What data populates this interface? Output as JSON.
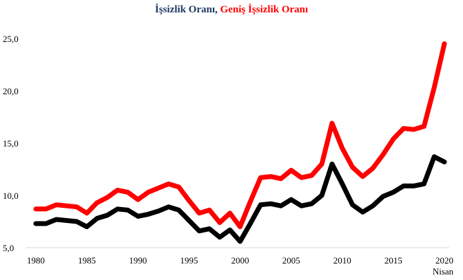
{
  "chart_data": {
    "type": "line",
    "title_parts": [
      {
        "text": "İşsizlik Oranı",
        "color": "#1f3864"
      },
      {
        "text": ", ",
        "color": "#1f3864"
      },
      {
        "text": "Geniş İşsizlik Oranı",
        "color": "#ff0000"
      }
    ],
    "x": [
      1980,
      1981,
      1982,
      1983,
      1984,
      1985,
      1986,
      1987,
      1988,
      1989,
      1990,
      1991,
      1992,
      1993,
      1994,
      1995,
      1996,
      1997,
      1998,
      1999,
      2000,
      2001,
      2002,
      2003,
      2004,
      2005,
      2006,
      2007,
      2008,
      2009,
      2010,
      2011,
      2012,
      2013,
      2014,
      2015,
      2016,
      2017,
      2018,
      2019,
      2020
    ],
    "x_ticks": [
      "1980",
      "1985",
      "1990",
      "1995",
      "2000",
      "2005",
      "2010",
      "2015",
      "2020"
    ],
    "x_last_sublabel": "Nisan",
    "y_ticks": [
      "5,0",
      "10,0",
      "15,0",
      "20,0",
      "25,0"
    ],
    "ylim": [
      5,
      25
    ],
    "grid": false,
    "series": [
      {
        "name": "İşsizlik Oranı",
        "color": "#000000",
        "values": [
          7.3,
          7.3,
          7.7,
          7.6,
          7.5,
          7.0,
          7.8,
          8.1,
          8.7,
          8.6,
          8.0,
          8.2,
          8.5,
          8.9,
          8.6,
          7.6,
          6.6,
          6.8,
          6.0,
          6.7,
          5.6,
          7.3,
          9.1,
          9.2,
          9.0,
          9.6,
          9.0,
          9.2,
          10.0,
          13.0,
          11.1,
          9.1,
          8.4,
          9.0,
          9.9,
          10.3,
          10.9,
          10.9,
          11.1,
          13.7,
          13.2
        ]
      },
      {
        "name": "Geniş İşsizlik Oranı",
        "color": "#ff0000",
        "values": [
          8.7,
          8.7,
          9.1,
          9.0,
          8.9,
          8.3,
          9.3,
          9.8,
          10.5,
          10.3,
          9.6,
          10.3,
          10.7,
          11.1,
          10.8,
          9.5,
          8.3,
          8.6,
          7.4,
          8.3,
          7.0,
          9.4,
          11.7,
          11.8,
          11.6,
          12.4,
          11.7,
          11.9,
          13.0,
          16.9,
          14.5,
          12.7,
          11.8,
          12.6,
          13.9,
          15.4,
          16.4,
          16.3,
          16.6,
          20.3,
          24.5
        ]
      }
    ]
  }
}
